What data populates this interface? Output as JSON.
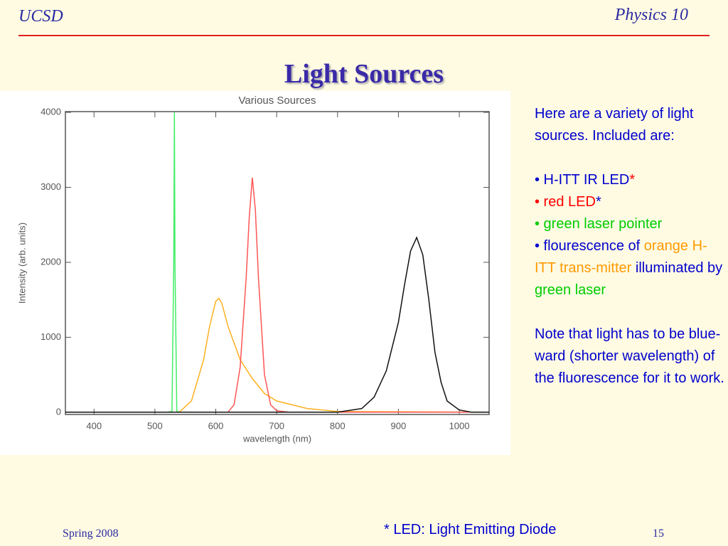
{
  "header": {
    "left": "UCSD",
    "right": "Physics 10"
  },
  "title": "Light Sources",
  "chart_data": {
    "type": "line",
    "title": "Various Sources",
    "x_label": "wavelength (nm)",
    "y_label": "Intensity (arb. units)",
    "xlim": [
      353,
      1049
    ],
    "ylim": [
      -30,
      4010
    ],
    "xticks": [
      400,
      500,
      600,
      700,
      800,
      900,
      1000
    ],
    "yticks": [
      0,
      1000,
      2000,
      3000,
      4000
    ],
    "series": [
      {
        "name": "green laser pointer",
        "color": "#44ee66",
        "x": [
          353,
          520,
          528,
          531,
          532,
          533,
          536,
          544,
          1049
        ],
        "values": [
          0,
          0,
          10,
          2000,
          4000,
          2000,
          10,
          0,
          0
        ]
      },
      {
        "name": "orange H-ITT transmitter",
        "color": "#ffb020",
        "x": [
          353,
          540,
          560,
          580,
          590,
          600,
          605,
          610,
          620,
          640,
          660,
          680,
          700,
          750,
          800,
          1049
        ],
        "values": [
          0,
          0,
          150,
          700,
          1150,
          1480,
          1520,
          1450,
          1150,
          700,
          450,
          250,
          150,
          50,
          10,
          0
        ]
      },
      {
        "name": "red LED",
        "color": "#ff5555",
        "x": [
          353,
          620,
          630,
          640,
          650,
          655,
          660,
          665,
          670,
          680,
          690,
          700,
          720,
          1049
        ],
        "values": [
          0,
          0,
          100,
          600,
          1800,
          2600,
          3130,
          2700,
          1800,
          500,
          100,
          20,
          0,
          0
        ]
      },
      {
        "name": "H-ITT IR LED",
        "color": "#111111",
        "x": [
          353,
          800,
          840,
          860,
          880,
          900,
          910,
          920,
          930,
          940,
          950,
          960,
          970,
          980,
          1000,
          1020,
          1049
        ],
        "values": [
          0,
          0,
          50,
          200,
          550,
          1200,
          1700,
          2150,
          2330,
          2100,
          1500,
          800,
          400,
          150,
          30,
          0,
          0
        ]
      }
    ]
  },
  "text": {
    "intro": "Here are a variety of light sources.  Included are:",
    "bullets": [
      [
        {
          "text": "• H-ITT IR LED",
          "color": "#0000cc"
        },
        {
          "text": "*",
          "color": "#ff0000"
        }
      ],
      [
        {
          "text": "• red LED",
          "color": "#ff0000"
        },
        {
          "text": "*",
          "color": "#0000cc"
        }
      ],
      [
        {
          "text": "• green laser pointer",
          "color": "#00cc00"
        }
      ],
      [
        {
          "text": "• flourescence of ",
          "color": "#0000cc"
        },
        {
          "text": "orange H-ITT trans-mitter",
          "color": "#ff9900"
        },
        {
          "text": " illuminated by ",
          "color": "#0000cc"
        },
        {
          "text": "green laser",
          "color": "#00cc00"
        }
      ]
    ],
    "note": "Note that light has to be blue-ward (shorter wavelength) of the fluorescence for it to work."
  },
  "footer": {
    "left": "Spring 2008",
    "center": "* LED: Light Emitting Diode",
    "page": "15"
  }
}
